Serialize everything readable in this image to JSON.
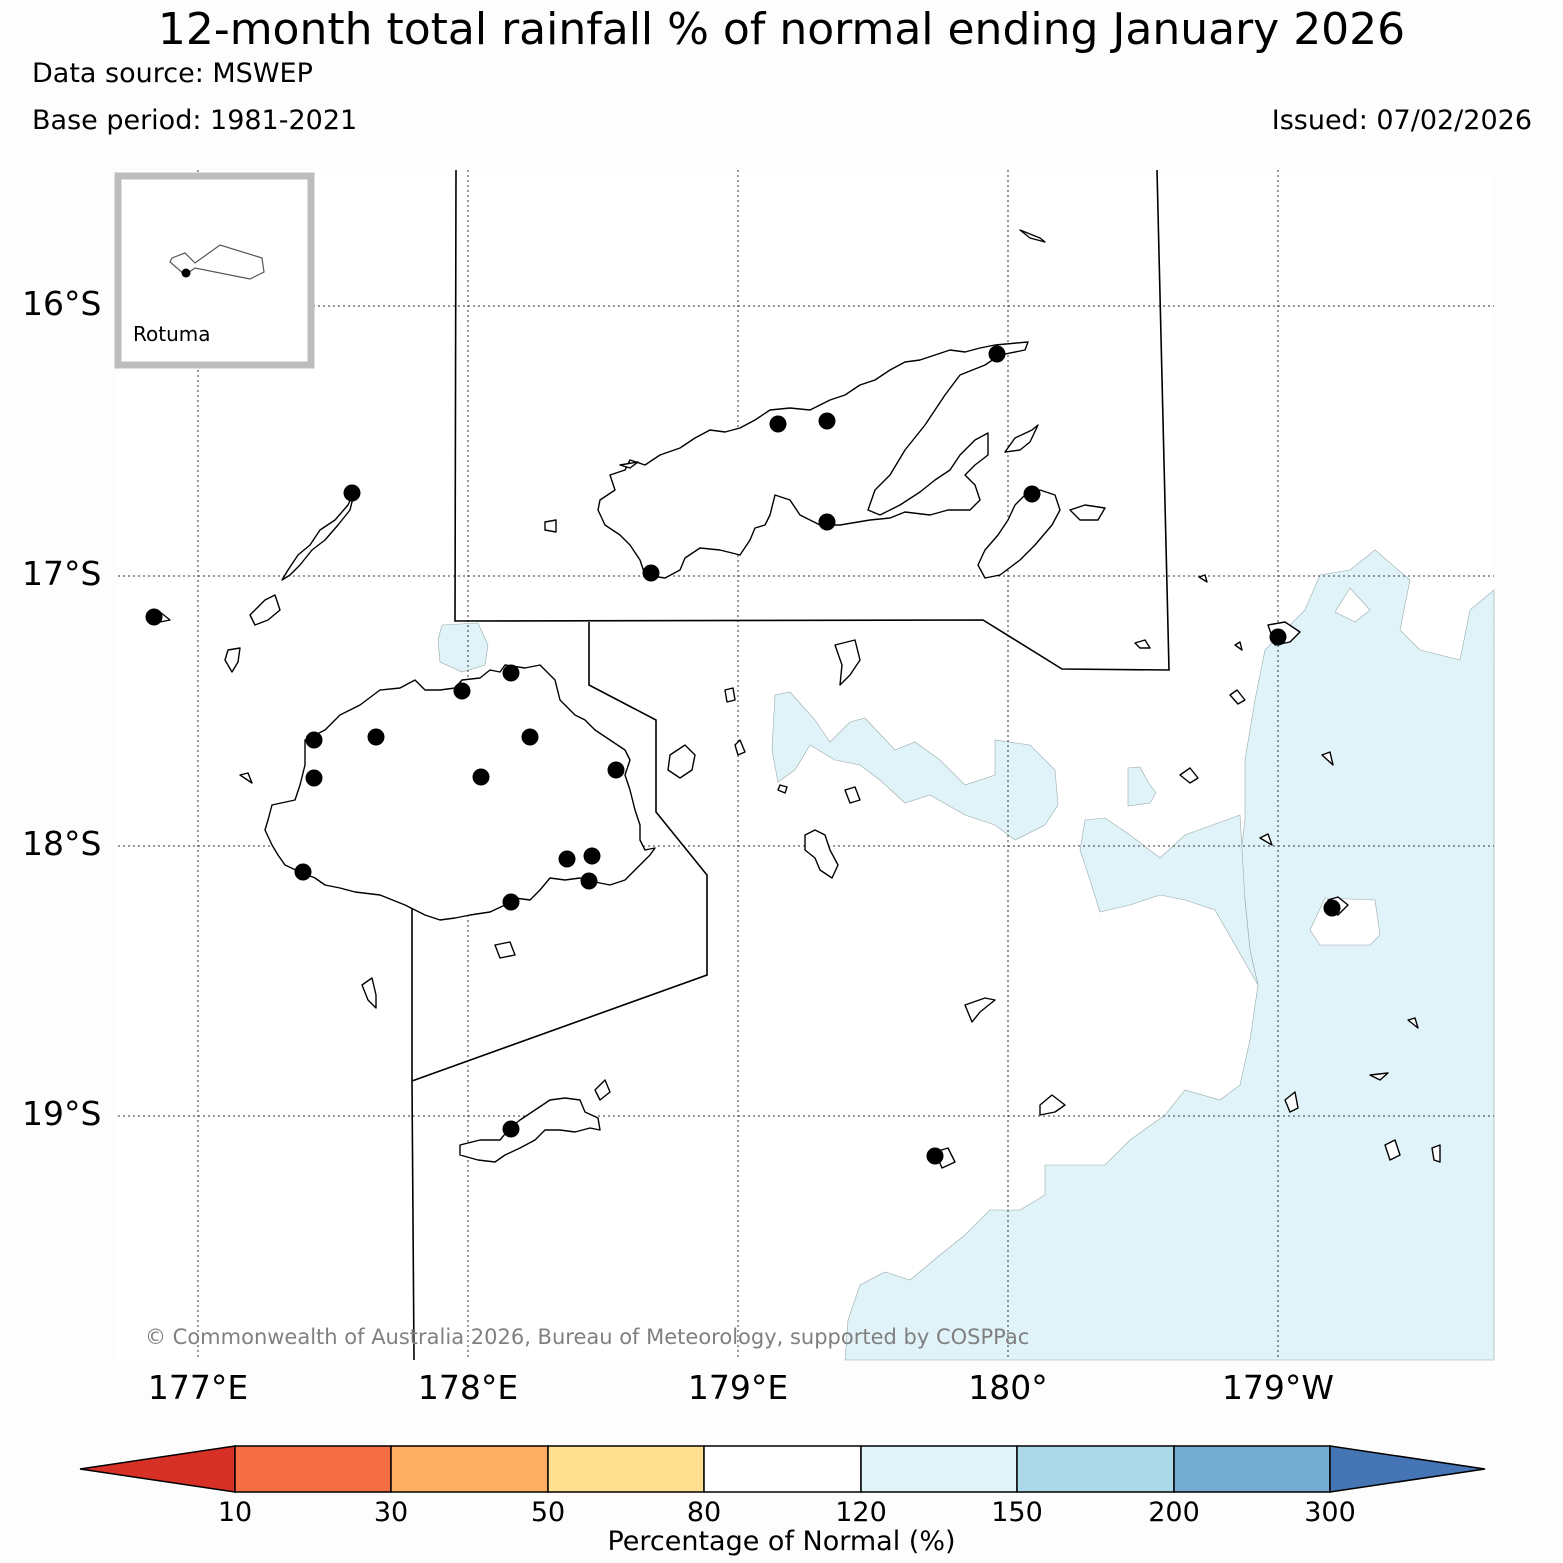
{
  "title": "12-month total rainfall % of normal ending January 2026",
  "data_source": "Data source: MSWEP",
  "base_period": "Base period: 1981-2021",
  "issued": "Issued: 07/02/2026",
  "inset_label": "Rotuma",
  "copyright": "© Commonwealth of Australia 2026, Bureau of Meteorology, supported by COSPPac",
  "lat_labels": [
    "16°S",
    "17°S",
    "18°S",
    "19°S"
  ],
  "lon_labels": [
    "177°E",
    "178°E",
    "179°E",
    "180°",
    "179°W"
  ],
  "colorbar": {
    "label": "Percentage of Normal (%)",
    "ticks": [
      "10",
      "30",
      "50",
      "80",
      "120",
      "150",
      "200",
      "300"
    ],
    "colors": [
      "#d73027",
      "#f46d43",
      "#fdae61",
      "#fee090",
      "#ffffff",
      "#e0f3f8",
      "#abd9e9",
      "#74add1",
      "#4575b4"
    ]
  }
}
